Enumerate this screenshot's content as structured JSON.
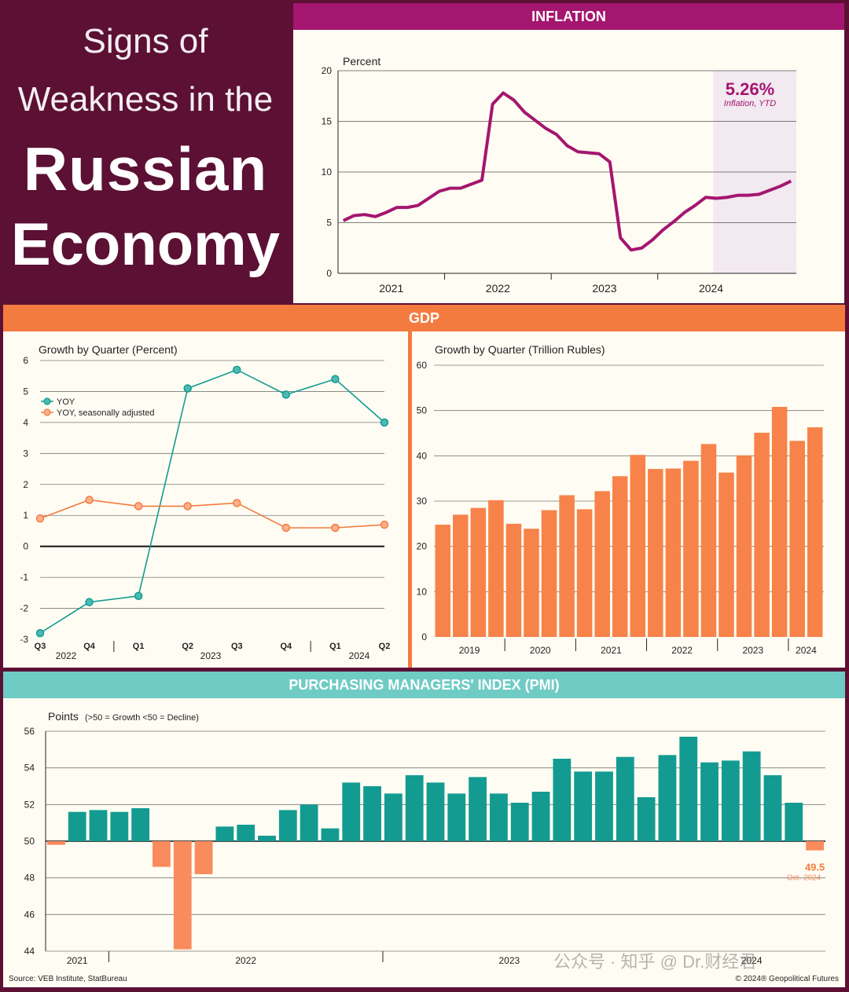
{
  "title": {
    "line1": "Signs of",
    "line2": "Weakness in the",
    "line3": "Russian",
    "line4": "Economy"
  },
  "colors": {
    "maroon": "#5c1034",
    "inflation": "#a4166f",
    "orange": "#f47b3f",
    "bar_orange": "#f7834a",
    "teal": "#139b92",
    "teal_header": "#6fccc4",
    "neg_orange": "#f98b5d"
  },
  "inflation": {
    "header": "INFLATION",
    "ylabel": "Percent",
    "annotation_value": "5.26%",
    "annotation_label": "Inflation, YTD"
  },
  "gdp": {
    "header": "GDP"
  },
  "pmi": {
    "header": "PURCHASING MANAGERS' INDEX (PMI)"
  },
  "chart_data": [
    {
      "type": "line",
      "title": "INFLATION",
      "ylabel": "Percent",
      "ylim": [
        0,
        20
      ],
      "yticks": [
        0,
        5,
        10,
        15,
        20
      ],
      "xticks": [
        "2021",
        "2022",
        "2023",
        "2024"
      ],
      "x": [
        2020.55,
        2020.65,
        2020.75,
        2020.85,
        2020.95,
        2021.05,
        2021.15,
        2021.25,
        2021.35,
        2021.45,
        2021.55,
        2021.65,
        2021.75,
        2021.85,
        2021.95,
        2022.05,
        2022.15,
        2022.25,
        2022.35,
        2022.45,
        2022.55,
        2022.65,
        2022.75,
        2022.85,
        2022.95,
        2023.05,
        2023.15,
        2023.25,
        2023.35,
        2023.45,
        2023.55,
        2023.65,
        2023.75,
        2023.85,
        2023.95,
        2024.05,
        2024.15,
        2024.25,
        2024.35,
        2024.45,
        2024.55,
        2024.65,
        2024.75
      ],
      "y": [
        5.2,
        5.7,
        5.8,
        5.6,
        6.0,
        6.5,
        6.5,
        6.7,
        7.4,
        8.1,
        8.4,
        8.4,
        8.8,
        9.2,
        16.7,
        17.8,
        17.1,
        15.9,
        15.1,
        14.3,
        13.7,
        12.6,
        12.0,
        11.9,
        11.8,
        11.0,
        3.5,
        2.3,
        2.5,
        3.3,
        4.3,
        5.1,
        6.0,
        6.7,
        7.5,
        7.4,
        7.5,
        7.7,
        7.7,
        7.8,
        8.2,
        8.6,
        9.1
      ],
      "highlight_region": "2024",
      "annotation": {
        "value": "5.26%",
        "label": "Inflation, YTD"
      }
    },
    {
      "type": "line",
      "title": "Growth by Quarter (Percent)",
      "ylim": [
        -3,
        6
      ],
      "yticks": [
        -3,
        -2,
        -1,
        0,
        1,
        2,
        3,
        4,
        5,
        6
      ],
      "categories": [
        "Q3",
        "Q4",
        "Q1",
        "Q2",
        "Q3",
        "Q4",
        "Q1",
        "Q2"
      ],
      "year_labels": [
        "2022",
        "2023",
        "2024"
      ],
      "series": [
        {
          "name": "YOY",
          "values": [
            -2.8,
            -1.8,
            -1.6,
            5.1,
            5.7,
            4.9,
            5.4,
            4.0
          ]
        },
        {
          "name": "YOY, seasonally adjusted",
          "values": [
            0.9,
            1.5,
            1.3,
            1.3,
            1.4,
            0.6,
            0.6,
            0.7
          ]
        }
      ]
    },
    {
      "type": "bar",
      "title": "Growth by Quarter (Trillion Rubles)",
      "ylim": [
        0,
        60
      ],
      "yticks": [
        0,
        10,
        20,
        30,
        40,
        50,
        60
      ],
      "year_labels": [
        "2019",
        "2020",
        "2021",
        "2022",
        "2023",
        "2024"
      ],
      "values": [
        24.8,
        27.0,
        28.5,
        30.2,
        25.0,
        23.9,
        28.0,
        31.3,
        28.2,
        32.2,
        35.5,
        40.2,
        37.1,
        37.2,
        38.9,
        42.6,
        36.3,
        40.1,
        45.1,
        50.8,
        43.3,
        46.3
      ]
    },
    {
      "type": "bar",
      "title": "Points (>50 = Growth <50 = Decline)",
      "ylim": [
        44,
        56
      ],
      "yticks": [
        44,
        46,
        48,
        50,
        52,
        54,
        56
      ],
      "baseline": 50,
      "year_labels": [
        "2021",
        "2022",
        "2023",
        "2024"
      ],
      "values": [
        49.8,
        51.6,
        51.7,
        51.6,
        51.8,
        48.6,
        44.1,
        48.2,
        50.8,
        50.9,
        50.3,
        51.7,
        52.0,
        50.7,
        53.2,
        53.0,
        52.6,
        53.6,
        53.2,
        52.6,
        53.5,
        52.6,
        52.1,
        52.7,
        54.5,
        53.8,
        53.8,
        54.6,
        52.4,
        54.7,
        55.7,
        54.3,
        54.4,
        54.9,
        53.6,
        52.1,
        49.5
      ],
      "last_label": {
        "value": "49.5",
        "date": "Oct. 2024"
      }
    }
  ],
  "footer": {
    "source": "Source: VEB Institute, StatBureau",
    "copyright": "© 2024® Geopolitical Futures",
    "watermark": "公众号 · 知乎 @ Dr.财经君"
  }
}
